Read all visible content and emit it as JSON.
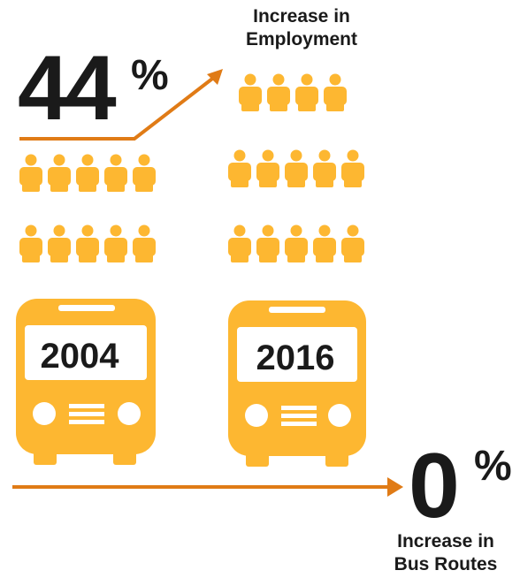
{
  "colors": {
    "person": "#FDB731",
    "bus": "#FDB731",
    "arrow": "#E07B16",
    "text": "#1a1a1a"
  },
  "employment": {
    "value": "44",
    "unit": "%",
    "label_line1": "Increase in",
    "label_line2": "Employment"
  },
  "bus_routes": {
    "value": "0",
    "unit": "%",
    "label_line1": "Increase in",
    "label_line2": "Bus Routes"
  },
  "years": {
    "left": "2004",
    "right": "2016"
  },
  "people_counts": {
    "2004": 10,
    "2016": 14
  }
}
